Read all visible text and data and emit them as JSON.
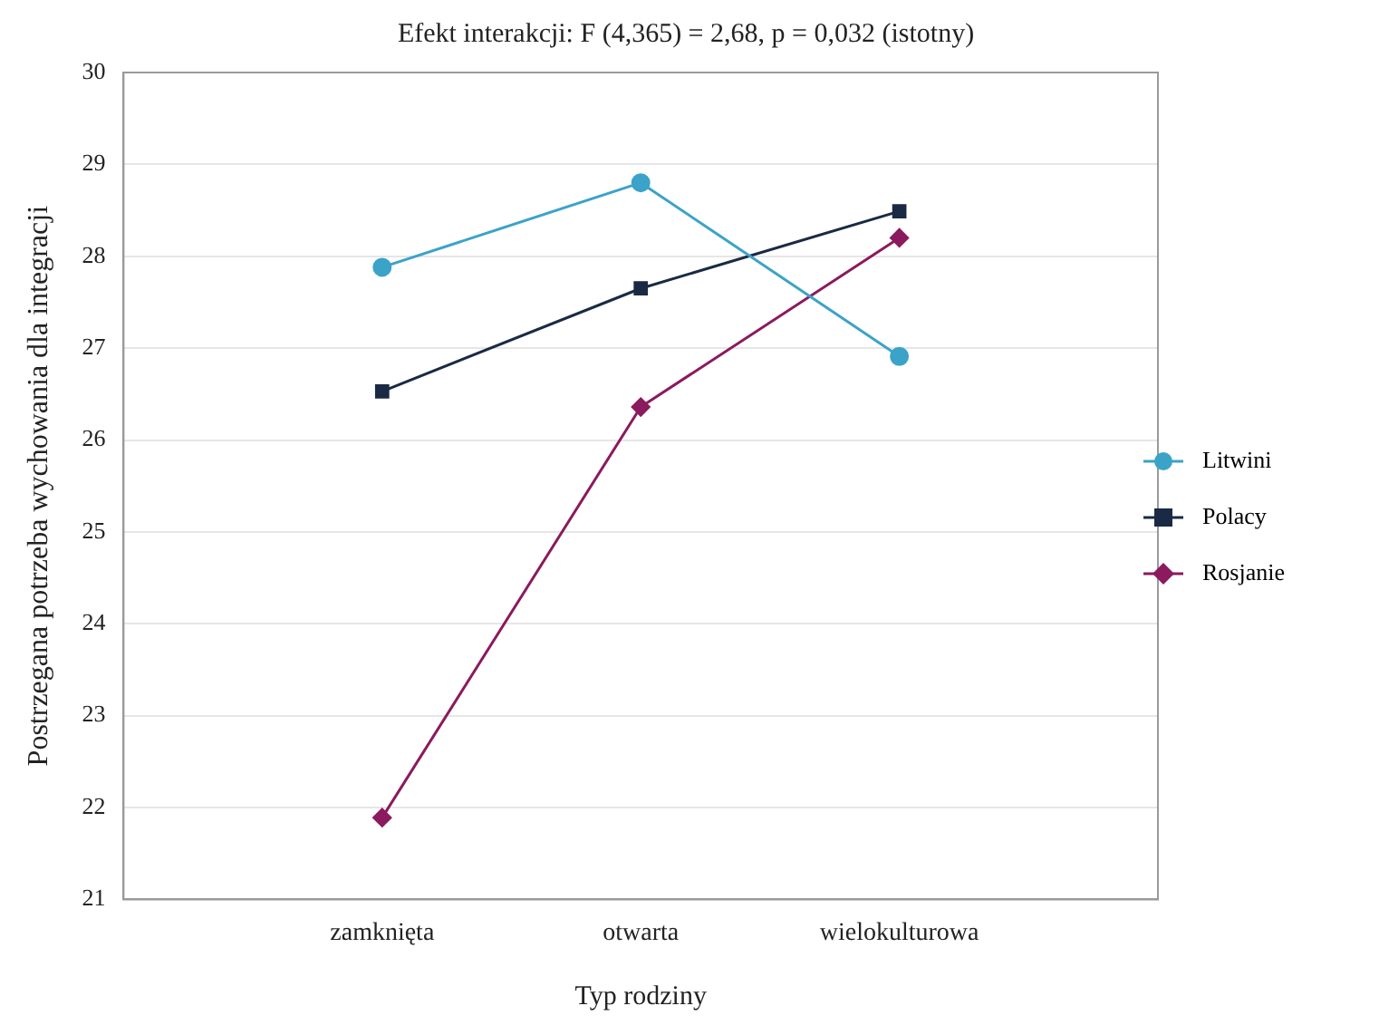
{
  "chart_data": {
    "type": "line",
    "title": "Efekt interakcji: F (4,365) = 2,68, p = 0,032 (istotny)",
    "xlabel": "Typ rodziny",
    "ylabel": "Postrzegana potrzeba wychowania dla integracji",
    "categories": [
      null,
      "zamknięta",
      "otwarta",
      "wielokulturowa",
      null
    ],
    "series": [
      {
        "name": "Litwini",
        "color": "#3ba3c8",
        "marker": "circle",
        "values": [
          null,
          27.88,
          28.8,
          26.91,
          null
        ]
      },
      {
        "name": "Polacy",
        "color": "#1a2a44",
        "marker": "square",
        "values": [
          null,
          26.53,
          27.65,
          28.49,
          null
        ]
      },
      {
        "name": "Rosjanie",
        "color": "#8b1a5e",
        "marker": "diamond",
        "values": [
          null,
          21.89,
          26.36,
          28.2,
          null
        ]
      }
    ],
    "ylim": [
      21,
      30
    ],
    "yticks": [
      21,
      22,
      23,
      24,
      25,
      26,
      27,
      28,
      29,
      30
    ],
    "grid": "y",
    "legend": "right",
    "line_style": "solid"
  }
}
